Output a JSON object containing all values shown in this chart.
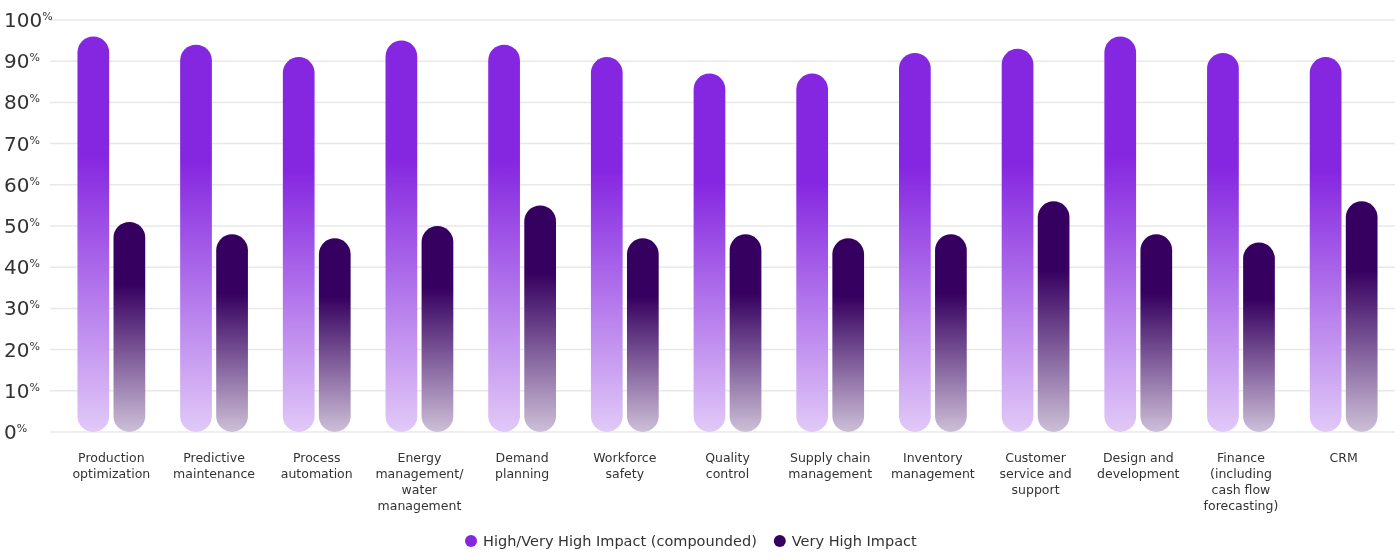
{
  "chart_data": {
    "type": "bar",
    "categories": [
      "Production optimization",
      "Predictive maintenance",
      "Process automation",
      "Energy management/ water management",
      "Demand planning",
      "Workforce safety",
      "Quality control",
      "Supply chain management",
      "Inventory management",
      "Customer service and support",
      "Design and development",
      "Finance (including cash flow forecasting)",
      "CRM"
    ],
    "series": [
      {
        "name": "High/Very High Impact (compounded)",
        "color": "#8526e0",
        "values": [
          96,
          94,
          91,
          95,
          94,
          91,
          87,
          87,
          92,
          93,
          96,
          92,
          91
        ]
      },
      {
        "name": "Very High Impact",
        "color": "#360060",
        "values": [
          51,
          48,
          47,
          50,
          55,
          47,
          48,
          47,
          48,
          56,
          48,
          46,
          56
        ]
      }
    ],
    "ylim": [
      0,
      100
    ],
    "yticks": [
      {
        "value": 0,
        "label": "0$^{%}$"
      },
      {
        "value": 10,
        "label": "10$^{%}$"
      },
      {
        "value": 20,
        "label": "20$^{%}$"
      },
      {
        "value": 30,
        "label": "30$^{%}$"
      },
      {
        "value": 40,
        "label": "40$^{%}$"
      },
      {
        "value": 50,
        "label": "50$^{%}$"
      },
      {
        "value": 60,
        "label": "60$^{%}$"
      },
      {
        "value": 70,
        "label": "70$^{%}$"
      },
      {
        "value": 80,
        "label": "80$^{%}$"
      },
      {
        "value": 90,
        "label": "90$^{%}$"
      },
      {
        "value": 100,
        "label": "100$^{%}$"
      }
    ],
    "grid": "y",
    "legend": "bottom"
  }
}
